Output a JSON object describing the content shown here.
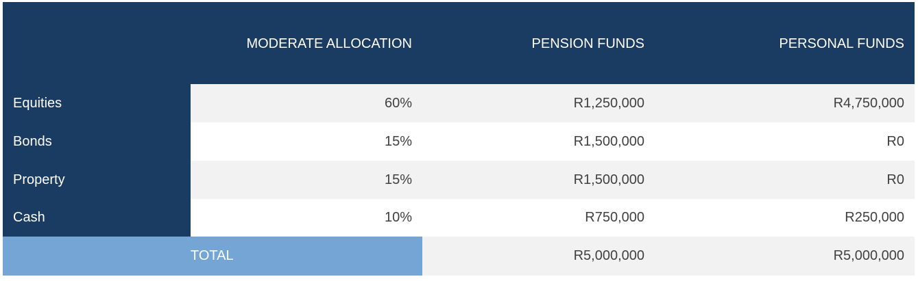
{
  "table": {
    "columns": [
      "MODERATE ALLOCATION",
      "PENSION FUNDS",
      "PERSONAL FUNDS"
    ],
    "rows": [
      {
        "label": "Equities",
        "cells": [
          "60%",
          "R1,250,000",
          "R4,750,000"
        ]
      },
      {
        "label": "Bonds",
        "cells": [
          "15%",
          "R1,500,000",
          "R0"
        ]
      },
      {
        "label": "Property",
        "cells": [
          "15%",
          "R1,500,000",
          "R0"
        ]
      },
      {
        "label": "Cash",
        "cells": [
          "10%",
          "R750,000",
          "R250,000"
        ]
      }
    ],
    "total": {
      "label": "TOTAL",
      "cells": [
        "R5,000,000",
        "R5,000,000"
      ]
    }
  }
}
